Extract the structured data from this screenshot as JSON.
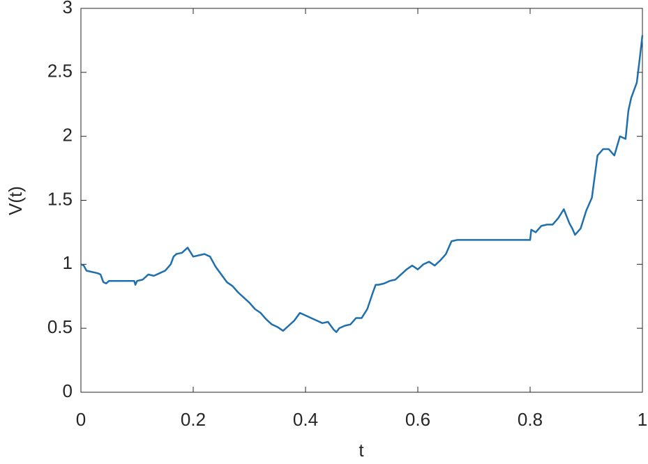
{
  "chart_data": {
    "type": "line",
    "x_label": "t",
    "y_label": "V(t)",
    "x": [
      0,
      0.005,
      0.01,
      0.02,
      0.03,
      0.035,
      0.04,
      0.045,
      0.05,
      0.06,
      0.08,
      0.095,
      0.097,
      0.1,
      0.11,
      0.12,
      0.13,
      0.14,
      0.15,
      0.16,
      0.165,
      0.17,
      0.18,
      0.19,
      0.2,
      0.21,
      0.22,
      0.23,
      0.24,
      0.25,
      0.26,
      0.27,
      0.28,
      0.29,
      0.3,
      0.31,
      0.32,
      0.33,
      0.34,
      0.35,
      0.36,
      0.37,
      0.38,
      0.39,
      0.4,
      0.41,
      0.42,
      0.43,
      0.44,
      0.45,
      0.455,
      0.46,
      0.47,
      0.48,
      0.49,
      0.5,
      0.51,
      0.52,
      0.525,
      0.53,
      0.54,
      0.55,
      0.56,
      0.57,
      0.58,
      0.59,
      0.6,
      0.61,
      0.62,
      0.63,
      0.64,
      0.65,
      0.66,
      0.67,
      0.7,
      0.75,
      0.8,
      0.802,
      0.81,
      0.82,
      0.83,
      0.84,
      0.85,
      0.86,
      0.87,
      0.875,
      0.88,
      0.89,
      0.9,
      0.91,
      0.92,
      0.93,
      0.94,
      0.95,
      0.96,
      0.97,
      0.975,
      0.98,
      0.99,
      0.995,
      1.0
    ],
    "series": [
      {
        "color": "#1f6fad",
        "values": [
          1.0,
          0.99,
          0.95,
          0.94,
          0.93,
          0.92,
          0.86,
          0.85,
          0.87,
          0.87,
          0.87,
          0.87,
          0.84,
          0.87,
          0.88,
          0.92,
          0.91,
          0.93,
          0.95,
          1.0,
          1.06,
          1.08,
          1.09,
          1.13,
          1.06,
          1.07,
          1.08,
          1.06,
          0.98,
          0.92,
          0.86,
          0.83,
          0.78,
          0.74,
          0.7,
          0.65,
          0.62,
          0.57,
          0.53,
          0.51,
          0.48,
          0.52,
          0.56,
          0.62,
          0.6,
          0.58,
          0.56,
          0.54,
          0.55,
          0.49,
          0.47,
          0.5,
          0.52,
          0.53,
          0.58,
          0.58,
          0.65,
          0.78,
          0.84,
          0.84,
          0.85,
          0.87,
          0.88,
          0.92,
          0.96,
          0.99,
          0.96,
          1.0,
          1.02,
          0.99,
          1.03,
          1.08,
          1.18,
          1.19,
          1.19,
          1.19,
          1.19,
          1.27,
          1.25,
          1.3,
          1.31,
          1.31,
          1.36,
          1.43,
          1.32,
          1.28,
          1.23,
          1.28,
          1.42,
          1.52,
          1.85,
          1.9,
          1.9,
          1.85,
          2.0,
          1.98,
          2.2,
          2.3,
          2.42,
          2.6,
          2.79
        ]
      }
    ],
    "xlim": [
      0,
      1
    ],
    "ylim": [
      0,
      3
    ],
    "xticks": [
      0,
      0.2,
      0.4,
      0.6,
      0.8,
      1
    ],
    "yticks": [
      0,
      0.5,
      1,
      1.5,
      2,
      2.5,
      3
    ]
  }
}
